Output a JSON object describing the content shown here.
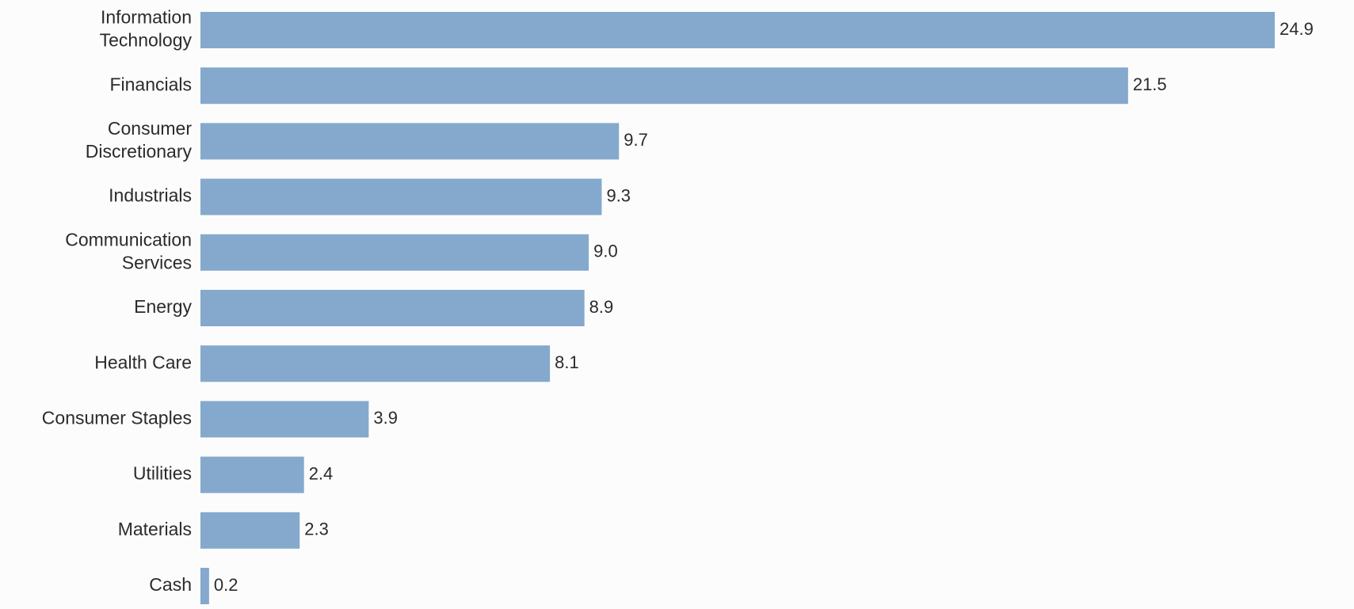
{
  "chart_data": {
    "type": "bar",
    "orientation": "horizontal",
    "categories": [
      [
        "Information",
        "Technology"
      ],
      [
        "Financials"
      ],
      [
        "Consumer",
        "Discretionary"
      ],
      [
        "Industrials"
      ],
      [
        "Communication",
        "Services"
      ],
      [
        "Energy"
      ],
      [
        "Health Care"
      ],
      [
        "Consumer Staples"
      ],
      [
        "Utilities"
      ],
      [
        "Materials"
      ],
      [
        "Cash"
      ]
    ],
    "values": [
      24.9,
      21.5,
      9.7,
      9.3,
      9.0,
      8.9,
      8.1,
      3.9,
      2.4,
      2.3,
      0.2
    ],
    "value_labels": [
      "24.9",
      "21.5",
      "9.7",
      "9.3",
      "9.0",
      "8.9",
      "8.1",
      "3.9",
      "2.4",
      "2.3",
      "0.2"
    ],
    "bar_color": "#84a9cd",
    "xlim": [
      0,
      24.9
    ],
    "grid": false,
    "legend": "none"
  }
}
